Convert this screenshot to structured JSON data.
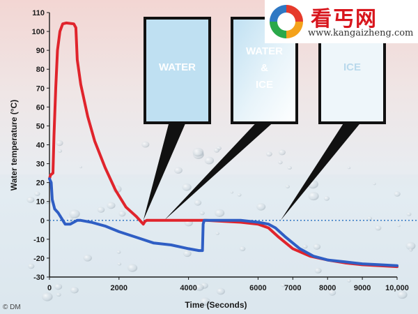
{
  "watermark": {
    "name": "看丐网",
    "url": "www.kangaizheng.com",
    "logo_icon": "swirl-logo-icon"
  },
  "credit": "© DM",
  "chart_data": {
    "type": "line",
    "title": "",
    "xlabel": "Time (Seconds)",
    "ylabel": "Water temperature (°C)",
    "xlim": [
      0,
      10000
    ],
    "ylim": [
      -30,
      110
    ],
    "x_ticks": [
      0,
      2000,
      4000,
      6000,
      7000,
      8000,
      9000,
      10000
    ],
    "x_tick_labels": [
      "0",
      "2000",
      "4000",
      "6000",
      "7000",
      "8000",
      "9000",
      "10,000"
    ],
    "y_ticks": [
      -30,
      -20,
      -10,
      0,
      10,
      20,
      30,
      40,
      50,
      60,
      70,
      80,
      90,
      100,
      110
    ],
    "y_tick_labels": [
      "-30",
      "-20",
      "-10",
      "0",
      "10",
      "20",
      "30",
      "40",
      "50",
      "60",
      "70",
      "80",
      "90",
      "100",
      "110"
    ],
    "zero_line": {
      "y": 0,
      "style": "dotted",
      "color": "#3f7fc7"
    },
    "series": [
      {
        "color": "#e0242c",
        "points": [
          [
            0,
            22
          ],
          [
            30,
            24
          ],
          [
            100,
            25
          ],
          [
            130,
            45
          ],
          [
            180,
            70
          ],
          [
            230,
            90
          ],
          [
            300,
            100
          ],
          [
            380,
            104
          ],
          [
            480,
            104.5
          ],
          [
            700,
            104
          ],
          [
            760,
            102
          ],
          [
            800,
            85
          ],
          [
            900,
            72
          ],
          [
            1100,
            55
          ],
          [
            1300,
            42
          ],
          [
            1600,
            28
          ],
          [
            1900,
            16
          ],
          [
            2200,
            7
          ],
          [
            2500,
            2
          ],
          [
            2650,
            -1
          ],
          [
            2700,
            -2
          ],
          [
            2750,
            -0.5
          ],
          [
            2800,
            0
          ],
          [
            3500,
            0
          ],
          [
            4500,
            0
          ],
          [
            5000,
            -0.5
          ],
          [
            5500,
            -1
          ],
          [
            6000,
            -2
          ],
          [
            6300,
            -4
          ],
          [
            6600,
            -9
          ],
          [
            7000,
            -15
          ],
          [
            7500,
            -19
          ],
          [
            8000,
            -21
          ],
          [
            8500,
            -22.5
          ],
          [
            9000,
            -23.5
          ],
          [
            9500,
            -24
          ],
          [
            10000,
            -24.5
          ]
        ]
      },
      {
        "color": "#2f5ec4",
        "points": [
          [
            0,
            22
          ],
          [
            50,
            20
          ],
          [
            80,
            11
          ],
          [
            150,
            6
          ],
          [
            250,
            4
          ],
          [
            350,
            1
          ],
          [
            450,
            -2
          ],
          [
            600,
            -2
          ],
          [
            700,
            -1
          ],
          [
            800,
            0
          ],
          [
            900,
            0
          ],
          [
            1200,
            -1
          ],
          [
            1600,
            -3
          ],
          [
            2000,
            -6
          ],
          [
            2500,
            -9
          ],
          [
            3000,
            -12
          ],
          [
            3500,
            -13
          ],
          [
            4000,
            -15
          ],
          [
            4300,
            -16
          ],
          [
            4400,
            -16
          ],
          [
            4420,
            -2
          ],
          [
            4450,
            0
          ],
          [
            5000,
            0
          ],
          [
            5500,
            0
          ],
          [
            6000,
            -1
          ],
          [
            6300,
            -2
          ],
          [
            6500,
            -4
          ],
          [
            6800,
            -9
          ],
          [
            7200,
            -15
          ],
          [
            7600,
            -19
          ],
          [
            8000,
            -21
          ],
          [
            8500,
            -22
          ],
          [
            9000,
            -23
          ],
          [
            9500,
            -23.5
          ],
          [
            10000,
            -24
          ]
        ]
      }
    ],
    "callouts": [
      {
        "label_lines": [
          "WATER"
        ],
        "target": [
          2700,
          0
        ]
      },
      {
        "label_lines": [
          "WATER",
          "&",
          "ICE"
        ],
        "target": [
          3300,
          0
        ]
      },
      {
        "label_lines": [
          "ICE"
        ],
        "target": [
          6650,
          0
        ]
      }
    ],
    "grid": false,
    "legend": "none"
  }
}
